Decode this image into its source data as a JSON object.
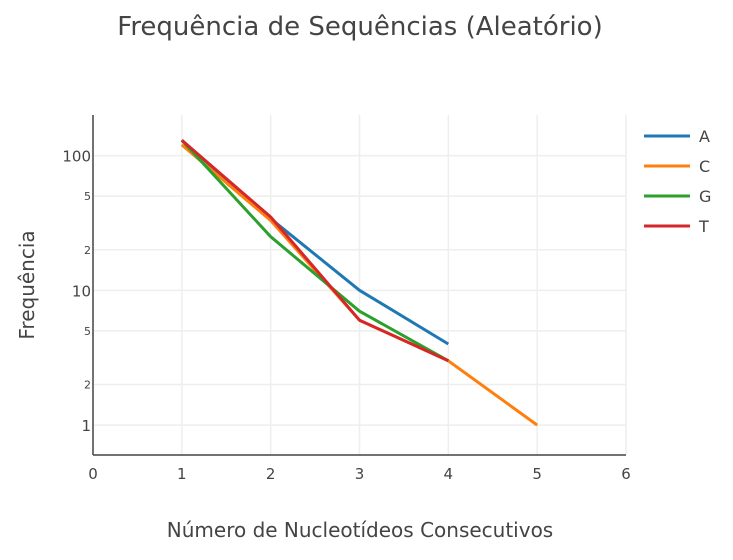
{
  "chart_data": {
    "type": "line",
    "title": "Frequência de Sequências (Aleatório)",
    "xlabel": "Número de Nucleotídeos Consecutivos",
    "ylabel": "Frequência",
    "xlim": [
      0,
      6
    ],
    "ylim": [
      0.6,
      200
    ],
    "yscale": "log",
    "grid": true,
    "legend_position": "top-right",
    "x_ticks": [
      "0",
      "1",
      "2",
      "3",
      "4",
      "5",
      "6"
    ],
    "y_major_ticks": [
      {
        "value": 1,
        "label": "1"
      },
      {
        "value": 10,
        "label": "10"
      },
      {
        "value": 100,
        "label": "100"
      }
    ],
    "y_minor_ticks": [
      {
        "value": 2,
        "label": "2"
      },
      {
        "value": 5,
        "label": "5"
      },
      {
        "value": 20,
        "label": "2"
      },
      {
        "value": 50,
        "label": "5"
      }
    ],
    "series": [
      {
        "name": "A",
        "color": "#1f77b4",
        "x": [
          1,
          2,
          3,
          4
        ],
        "y": [
          130,
          34,
          10,
          4
        ]
      },
      {
        "name": "C",
        "color": "#ff7f0e",
        "x": [
          1,
          2,
          3,
          4,
          5
        ],
        "y": [
          120,
          33,
          6,
          3,
          1
        ]
      },
      {
        "name": "G",
        "color": "#2ca02c",
        "x": [
          1,
          2,
          3,
          4
        ],
        "y": [
          130,
          25,
          7,
          3
        ]
      },
      {
        "name": "T",
        "color": "#d62728",
        "x": [
          1,
          2,
          3,
          4
        ],
        "y": [
          130,
          35,
          6,
          3
        ]
      }
    ]
  }
}
